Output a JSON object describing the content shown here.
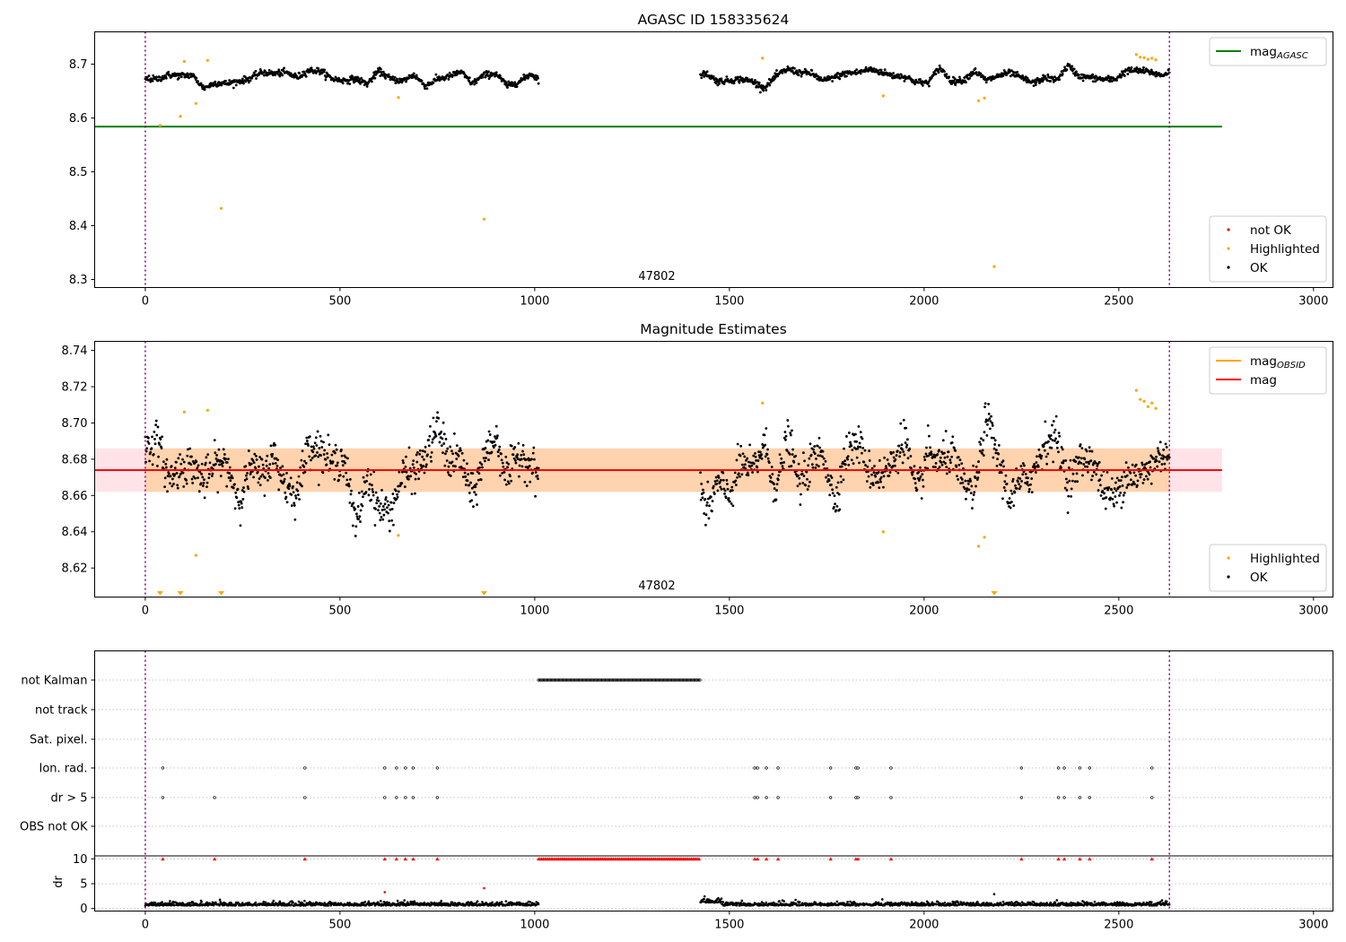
{
  "chart_data": [
    {
      "type": "scatter",
      "title": "AGASC ID 158335624",
      "xlim": [
        -130,
        3050
      ],
      "ylim": [
        8.285,
        8.76
      ],
      "xticks": [
        0,
        500,
        1000,
        1500,
        2000,
        2500,
        3000
      ],
      "yticks": [
        8.3,
        8.4,
        8.5,
        8.6,
        8.7
      ],
      "xtick_labels": [
        "0",
        "500",
        "1000",
        "1500",
        "2000",
        "2500",
        "3000"
      ],
      "ytick_labels": [
        "8.3",
        "8.4",
        "8.5",
        "8.6",
        "8.7"
      ],
      "obsid_label": "47802",
      "obsid_x": 1315,
      "obsid_boundaries": [
        0,
        2630
      ],
      "gap": [
        1010,
        1425
      ],
      "ok_baseline": 8.676,
      "ok_noise": 0.006,
      "mag_agasc": 8.584,
      "mag_agasc_xrange": [
        -130,
        2765
      ],
      "highlighted_points": [
        [
          38,
          8.586
        ],
        [
          90,
          8.603
        ],
        [
          100,
          8.705
        ],
        [
          130,
          8.627
        ],
        [
          160,
          8.707
        ],
        [
          195,
          8.432
        ],
        [
          650,
          8.638
        ],
        [
          870,
          8.412
        ],
        [
          1585,
          8.711
        ],
        [
          1895,
          8.641
        ],
        [
          2140,
          8.632
        ],
        [
          2155,
          8.637
        ],
        [
          2180,
          8.324
        ],
        [
          2545,
          8.718
        ],
        [
          2555,
          8.713
        ],
        [
          2565,
          8.712
        ],
        [
          2575,
          8.709
        ],
        [
          2585,
          8.711
        ],
        [
          2595,
          8.708
        ]
      ],
      "legends": [
        {
          "placement": "upper-right",
          "entries": [
            {
              "label": "mag",
              "sub": "AGASC",
              "color": "#008000",
              "kind": "line"
            }
          ]
        },
        {
          "placement": "lower-right",
          "entries": [
            {
              "label": "not OK",
              "color": "#ff0000",
              "kind": "dot"
            },
            {
              "label": "Highlighted",
              "color": "#ffa500",
              "kind": "dot"
            },
            {
              "label": "OK",
              "color": "#000000",
              "kind": "dot"
            }
          ]
        }
      ]
    },
    {
      "type": "scatter",
      "title": "Magnitude Estimates",
      "xlim": [
        -130,
        3050
      ],
      "ylim": [
        8.604,
        8.745
      ],
      "xticks": [
        0,
        500,
        1000,
        1500,
        2000,
        2500,
        3000
      ],
      "yticks": [
        8.62,
        8.64,
        8.66,
        8.68,
        8.7,
        8.72,
        8.74
      ],
      "xtick_labels": [
        "0",
        "500",
        "1000",
        "1500",
        "2000",
        "2500",
        "3000"
      ],
      "ytick_labels": [
        "8.62",
        "8.64",
        "8.66",
        "8.68",
        "8.70",
        "8.72",
        "8.74"
      ],
      "obsid_label": "47802",
      "obsid_x": 1315,
      "obsid_boundaries": [
        0,
        2630
      ],
      "gap": [
        1010,
        1425
      ],
      "mag": 8.674,
      "mag_band": [
        8.662,
        8.686
      ],
      "mag_obsid": 8.674,
      "mag_xrange": [
        -130,
        2765
      ],
      "ok_baseline": 8.674,
      "ok_noise": 0.0095,
      "highlighted_points": [
        [
          38,
          8.604
        ],
        [
          90,
          8.604
        ],
        [
          100,
          8.706
        ],
        [
          130,
          8.627
        ],
        [
          160,
          8.707
        ],
        [
          195,
          8.604
        ],
        [
          650,
          8.638
        ],
        [
          870,
          8.604
        ],
        [
          1585,
          8.711
        ],
        [
          1895,
          8.64
        ],
        [
          2140,
          8.632
        ],
        [
          2155,
          8.637
        ],
        [
          2180,
          8.604
        ],
        [
          2545,
          8.718
        ],
        [
          2555,
          8.713
        ],
        [
          2565,
          8.712
        ],
        [
          2575,
          8.709
        ],
        [
          2585,
          8.711
        ],
        [
          2595,
          8.708
        ]
      ],
      "legends": [
        {
          "placement": "upper-right",
          "entries": [
            {
              "label": "mag",
              "sub": "OBSID",
              "color": "#ffa500",
              "kind": "line"
            },
            {
              "label": "mag",
              "sub": "",
              "color": "#ff0000",
              "kind": "line"
            }
          ]
        },
        {
          "placement": "lower-right",
          "entries": [
            {
              "label": "Highlighted",
              "color": "#ffa500",
              "kind": "dot"
            },
            {
              "label": "OK",
              "color": "#000000",
              "kind": "dot"
            }
          ]
        }
      ]
    },
    {
      "type": "scatter",
      "title": "",
      "xlim": [
        -130,
        3050
      ],
      "categories": [
        "not Kalman",
        "not track",
        "Sat. pixel.",
        "Ion. rad.",
        "dr > 5",
        "OBS not OK"
      ],
      "flag_points": {
        "not Kalman": "range:1010:1425",
        "Ion. rad.": [
          45,
          410,
          615,
          645,
          668,
          688,
          750,
          1565,
          1572,
          1595,
          1625,
          1760,
          1825,
          1830,
          1915,
          2250,
          2345,
          2360,
          2400,
          2425,
          2585
        ],
        "dr > 5": [
          45,
          178,
          410,
          615,
          645,
          668,
          688,
          750,
          1565,
          1572,
          1595,
          1625,
          1760,
          1825,
          1830,
          1915,
          2250,
          2345,
          2360,
          2400,
          2425,
          2585
        ]
      },
      "dr_ylabel": "dr",
      "dr_yticks": [
        0,
        5,
        10
      ],
      "dr_ytick_labels": [
        "0",
        "5",
        "10"
      ],
      "dr_ylim": [
        -0.5,
        10.6
      ],
      "dr_clip_points": [
        45,
        178,
        410,
        615,
        645,
        668,
        688,
        750,
        1565,
        1572,
        1595,
        1625,
        1760,
        1825,
        1830,
        1915,
        2250,
        2345,
        2360,
        2400,
        2425,
        2585
      ],
      "dr_outliers": [
        [
          615,
          3.3
        ],
        [
          870,
          4.1
        ],
        [
          2180,
          2.9
        ]
      ],
      "xticks": [
        0,
        500,
        1000,
        1500,
        2000,
        2500,
        3000
      ],
      "xtick_labels": [
        "0",
        "500",
        "1000",
        "1500",
        "2000",
        "2500",
        "3000"
      ],
      "obsid_boundaries": [
        0,
        2630
      ]
    }
  ]
}
